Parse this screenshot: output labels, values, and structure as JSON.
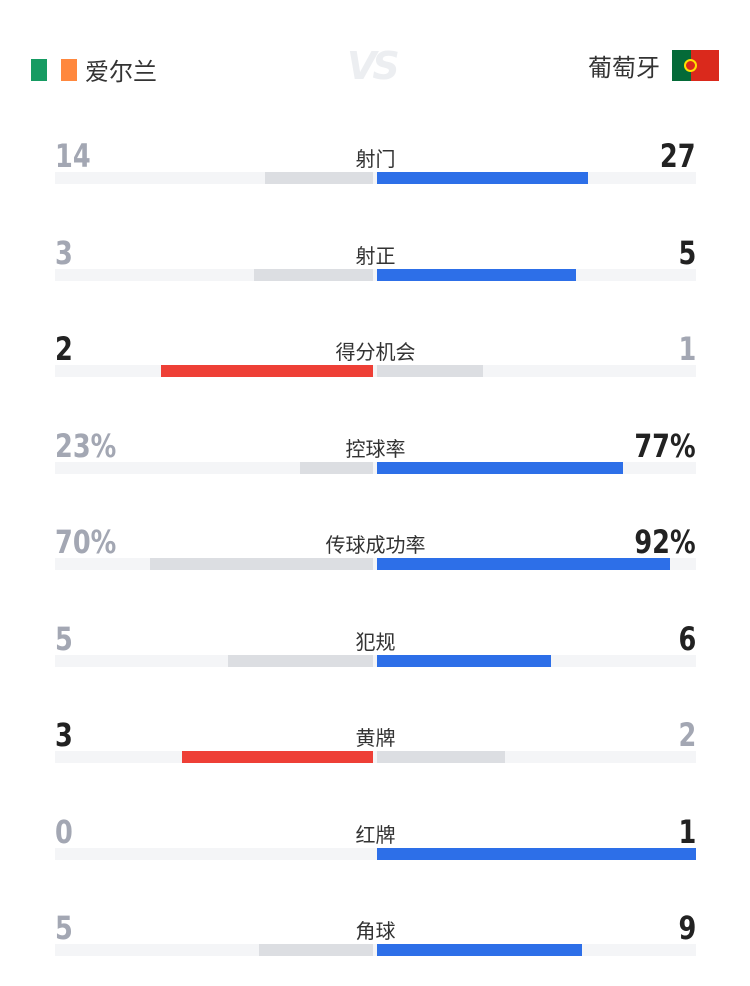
{
  "header": {
    "home": {
      "name": "爱尔兰",
      "flag": "ireland-flag",
      "flag_colors": [
        "#169b62",
        "#ffffff",
        "#ff883e"
      ]
    },
    "vs": "VS",
    "away": {
      "name": "葡萄牙",
      "flag": "portugal-flag",
      "flag_colors": [
        "#046a38",
        "#da291c"
      ]
    }
  },
  "colors": {
    "home_win": "#ee3f36",
    "away_win": "#2d6fe8",
    "lose_bar": "#dcdee2",
    "track": "#f4f5f7",
    "win_text": "#222222",
    "lose_text": "#a3a7b3"
  },
  "stats": [
    {
      "label": "射门",
      "home": "14",
      "away": "27",
      "home_share": 0.34,
      "away_share": 0.66,
      "leader": "away"
    },
    {
      "label": "射正",
      "home": "3",
      "away": "5",
      "home_share": 0.375,
      "away_share": 0.625,
      "leader": "away"
    },
    {
      "label": "得分机会",
      "home": "2",
      "away": "1",
      "home_share": 0.667,
      "away_share": 0.333,
      "leader": "home"
    },
    {
      "label": "控球率",
      "home": "23%",
      "away": "77%",
      "home_share": 0.23,
      "away_share": 0.77,
      "leader": "away"
    },
    {
      "label": "传球成功率",
      "home": "70%",
      "away": "92%",
      "home_share": 0.7,
      "away_share": 0.92,
      "leader": "away"
    },
    {
      "label": "犯规",
      "home": "5",
      "away": "6",
      "home_share": 0.455,
      "away_share": 0.545,
      "leader": "away"
    },
    {
      "label": "黄牌",
      "home": "3",
      "away": "2",
      "home_share": 0.6,
      "away_share": 0.4,
      "leader": "home"
    },
    {
      "label": "红牌",
      "home": "0",
      "away": "1",
      "home_share": 0,
      "away_share": 1,
      "leader": "away"
    },
    {
      "label": "角球",
      "home": "5",
      "away": "9",
      "home_share": 0.357,
      "away_share": 0.643,
      "leader": "away"
    }
  ]
}
